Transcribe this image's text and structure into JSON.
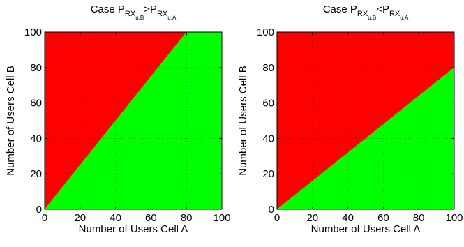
{
  "figure": {
    "background": "#ffffff"
  },
  "chart_data": [
    {
      "type": "heatmap",
      "title": {
        "prefix": "Case P",
        "sub1": "RX",
        "subsub1": "u,B",
        "op": ">P",
        "sub2": "RX",
        "subsub2": "u,A"
      },
      "xlabel": "Number of Users Cell A",
      "ylabel": "Number of Users Cell B",
      "xlim": [
        0,
        100
      ],
      "ylim": [
        0,
        100
      ],
      "xticks": [
        0,
        20,
        40,
        60,
        80,
        100
      ],
      "yticks": [
        0,
        20,
        40,
        60,
        80,
        100
      ],
      "grid": true,
      "regions": [
        {
          "color": "#ff0000",
          "polygon": [
            [
              0,
              0
            ],
            [
              80,
              100
            ],
            [
              0,
              100
            ]
          ]
        },
        {
          "color": "#00ff00",
          "polygon": [
            [
              0,
              0
            ],
            [
              100,
              0
            ],
            [
              100,
              100
            ],
            [
              80,
              100
            ]
          ]
        }
      ],
      "boundary": {
        "from": [
          0,
          0
        ],
        "to": [
          80,
          100
        ]
      }
    },
    {
      "type": "heatmap",
      "title": {
        "prefix": "Case P",
        "sub1": "RX",
        "subsub1": "u,B",
        "op": "<P",
        "sub2": "RX",
        "subsub2": "u,A"
      },
      "xlabel": "Number of Users Cell A",
      "ylabel": "Number of Users Cell B",
      "xlim": [
        0,
        100
      ],
      "ylim": [
        0,
        100
      ],
      "xticks": [
        0,
        20,
        40,
        60,
        80,
        100
      ],
      "yticks": [
        0,
        20,
        40,
        60,
        80,
        100
      ],
      "grid": true,
      "regions": [
        {
          "color": "#ff0000",
          "polygon": [
            [
              0,
              0
            ],
            [
              100,
              80
            ],
            [
              100,
              100
            ],
            [
              0,
              100
            ]
          ]
        },
        {
          "color": "#00ff00",
          "polygon": [
            [
              0,
              0
            ],
            [
              100,
              0
            ],
            [
              100,
              80
            ]
          ]
        }
      ],
      "boundary": {
        "from": [
          0,
          0
        ],
        "to": [
          100,
          80
        ]
      }
    }
  ]
}
